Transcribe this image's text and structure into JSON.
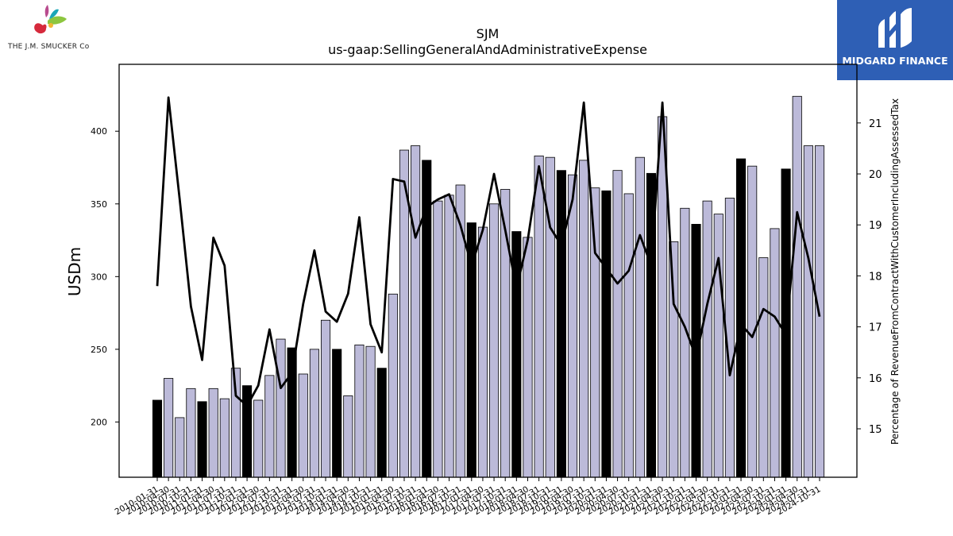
{
  "header": {
    "ticker": "SJM",
    "metric": "us-gaap:SellingGeneralAndAdministrativeExpense"
  },
  "logo": {
    "text": "THE J.M. SMUCKER Co",
    "colors": [
      "#d62a3c",
      "#8dc63f",
      "#1aa6b7",
      "#f2b632"
    ]
  },
  "badge": {
    "text": "MIDGARD FINANCE",
    "bg": "#2e5fb5"
  },
  "colors": {
    "bar_highlight": "#000000",
    "bar_normal": "#bcbad9",
    "line": "#000000"
  },
  "chart_data": {
    "type": "bar",
    "title": "SJM",
    "subtitle": "us-gaap:SellingGeneralAndAdministrativeExpense",
    "ylabel": "USDm",
    "y2label": "Percentage of RevenueFromContractWithCustomerIncludingAssessedTax",
    "ylim": [
      162,
      446
    ],
    "y2lim": [
      14.05,
      22.15
    ],
    "yticks": [
      200,
      250,
      300,
      350,
      400
    ],
    "y2ticks": [
      15,
      16,
      17,
      18,
      19,
      20,
      21
    ],
    "categories": [
      "2010-01-31",
      "2010-04-30",
      "2010-07-31",
      "2010-10-31",
      "2011-01-31",
      "2011-04-30",
      "2011-07-31",
      "2011-10-31",
      "2012-01-31",
      "2012-04-30",
      "2012-07-31",
      "2012-10-31",
      "2013-01-31",
      "2013-04-30",
      "2013-07-31",
      "2013-10-31",
      "2014-01-31",
      "2014-04-30",
      "2014-07-31",
      "2014-10-31",
      "2015-01-31",
      "2015-04-30",
      "2015-07-31",
      "2015-10-31",
      "2016-01-31",
      "2016-04-30",
      "2016-07-31",
      "2016-10-31",
      "2017-01-31",
      "2017-04-30",
      "2017-07-31",
      "2017-10-31",
      "2018-01-31",
      "2018-04-30",
      "2018-07-31",
      "2018-10-31",
      "2019-01-31",
      "2019-04-30",
      "2019-07-31",
      "2019-10-31",
      "2020-01-31",
      "2020-04-30",
      "2020-07-31",
      "2020-10-31",
      "2021-01-31",
      "2021-04-30",
      "2021-07-31",
      "2021-10-31",
      "2022-01-31",
      "2022-04-30",
      "2022-07-31",
      "2022-10-31",
      "2023-01-31",
      "2023-04-30",
      "2023-07-31",
      "2023-10-31",
      "2024-01-31",
      "2024-04-30",
      "2024-07-31",
      "2024-10-31"
    ],
    "xtick_labels": [
      "2010-01-31",
      "2010-04-30",
      "2010-07-31",
      "2010-10-31",
      "2011-01-31",
      "2011-04-30",
      "2011-07-31",
      "2011-10-31",
      "2012-01-31",
      "2012-04-30",
      "2012-07-31",
      "2012-10-31",
      "2013-01-31",
      "2013-04-30",
      "2013-07-31",
      "2013-10-31",
      "2014-01-31",
      "2014-04-30",
      "2014-07-31",
      "2014-10-31",
      "2015-01-31",
      "2015-04-30",
      "2015-07-31",
      "2015-10-31",
      "2016-01-31",
      "2016-04-30",
      "2016-07-31",
      "2016-10-31",
      "2017-01-31",
      "2017-04-30",
      "2017-07-31",
      "2017-10-31",
      "2018-01-31",
      "2018-04-30",
      "2018-07-31",
      "2018-10-31",
      "2019-01-31",
      "2019-04-30",
      "2019-07-31",
      "2019-10-31",
      "2020-01-31",
      "2020-04-30",
      "2020-07-31",
      "2020-10-31",
      "2021-01-31",
      "2021-04-30",
      "2021-07-31",
      "2021-10-31",
      "2022-01-31",
      "2022-04-30",
      "2022-07-31",
      "2022-10-31",
      "2023-01-31",
      "2023-04-30",
      "2023-07-31",
      "2023-10-31",
      "2024-01-31",
      "2024-04-30",
      "2024-07-31",
      "2024-10-31"
    ],
    "bars": [
      215,
      230,
      203,
      223,
      214,
      223,
      216,
      237,
      225,
      215,
      232,
      257,
      251,
      233,
      250,
      270,
      250,
      218,
      253,
      252,
      237,
      288,
      387,
      390,
      380,
      352,
      356,
      363,
      337,
      334,
      350,
      360,
      331,
      327,
      383,
      382,
      373,
      370,
      380,
      361,
      359,
      373,
      357,
      382,
      371,
      410,
      324,
      347,
      336,
      352,
      343,
      354,
      381,
      376,
      313,
      333,
      374,
      424,
      390,
      390
    ],
    "highlight": [
      true,
      false,
      false,
      false,
      true,
      false,
      false,
      false,
      true,
      false,
      false,
      false,
      true,
      false,
      false,
      false,
      true,
      false,
      false,
      false,
      true,
      false,
      false,
      false,
      true,
      false,
      false,
      false,
      true,
      false,
      false,
      false,
      true,
      false,
      false,
      false,
      true,
      false,
      false,
      false,
      true,
      false,
      false,
      false,
      true,
      false,
      false,
      false,
      true,
      false,
      false,
      false,
      true,
      false,
      false,
      false,
      true,
      false,
      false,
      false
    ],
    "line": [
      17.8,
      21.5,
      19.5,
      17.4,
      16.35,
      18.75,
      18.2,
      15.65,
      15.45,
      15.85,
      16.95,
      15.8,
      16.1,
      17.45,
      18.5,
      17.3,
      17.1,
      17.65,
      19.15,
      17.05,
      16.5,
      19.9,
      19.85,
      18.75,
      19.35,
      19.5,
      19.6,
      19.0,
      18.2,
      18.9,
      20.0,
      18.9,
      17.75,
      18.7,
      20.15,
      18.95,
      18.6,
      19.5,
      21.4,
      18.45,
      18.15,
      17.85,
      18.1,
      18.8,
      18.2,
      21.4,
      17.45,
      17.0,
      16.4,
      17.45,
      18.35,
      16.05,
      17.05,
      16.8,
      17.35,
      17.2,
      16.85,
      19.25,
      18.35,
      17.2
    ],
    "grid": false,
    "legend": "none"
  }
}
